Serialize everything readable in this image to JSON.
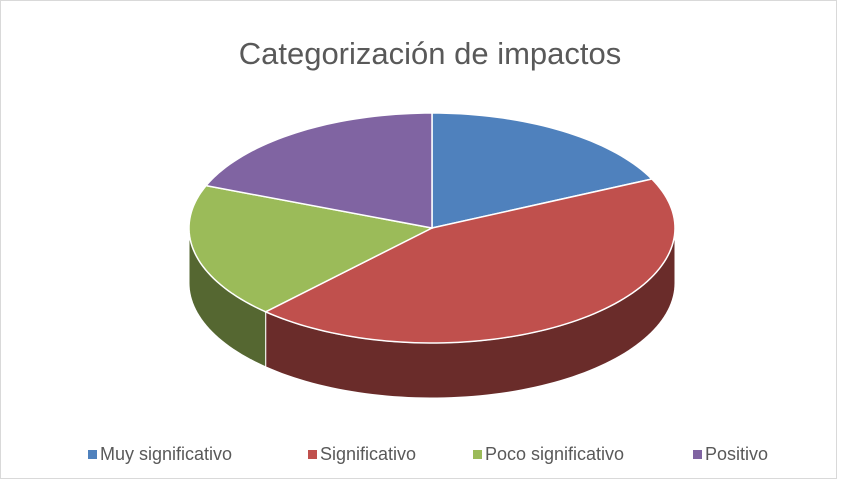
{
  "chart_data": {
    "type": "pie3d",
    "title": "Categorización de impactos",
    "categories": [
      "Muy significativo",
      "Significativo",
      "Poco significativo",
      "Positivo"
    ],
    "values": [
      18,
      44,
      19,
      19
    ],
    "colors": [
      "#4f81bd",
      "#c0504d",
      "#9bbb59",
      "#8064a2"
    ],
    "legend": "bottom"
  }
}
